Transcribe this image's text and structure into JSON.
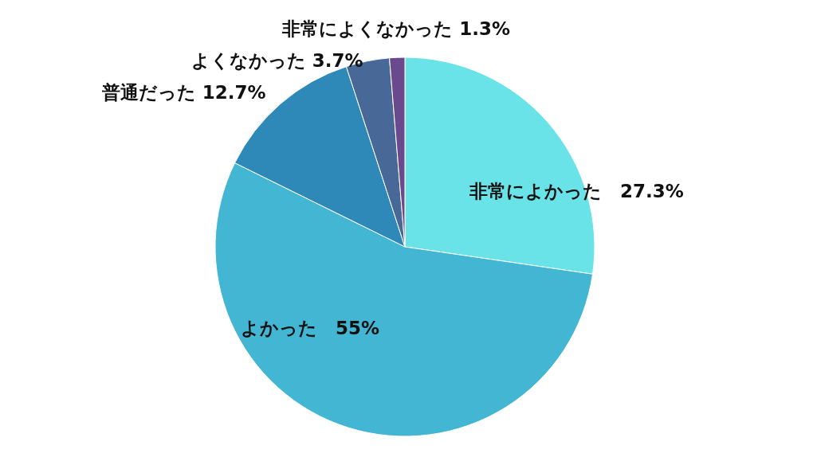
{
  "chart_data": {
    "type": "pie",
    "categories": [
      "非常によかった",
      "よかった",
      "普通だった",
      "よくなかった",
      "非常によくなかった"
    ],
    "values": [
      27.3,
      55,
      12.7,
      3.7,
      1.3
    ],
    "colors": [
      "#6ae3e8",
      "#43b6d4",
      "#2e88b8",
      "#486898",
      "#6a4a8c"
    ],
    "value_labels": [
      "27.3%",
      "55%",
      "12.7%",
      "3.7%",
      "1.3%"
    ]
  }
}
